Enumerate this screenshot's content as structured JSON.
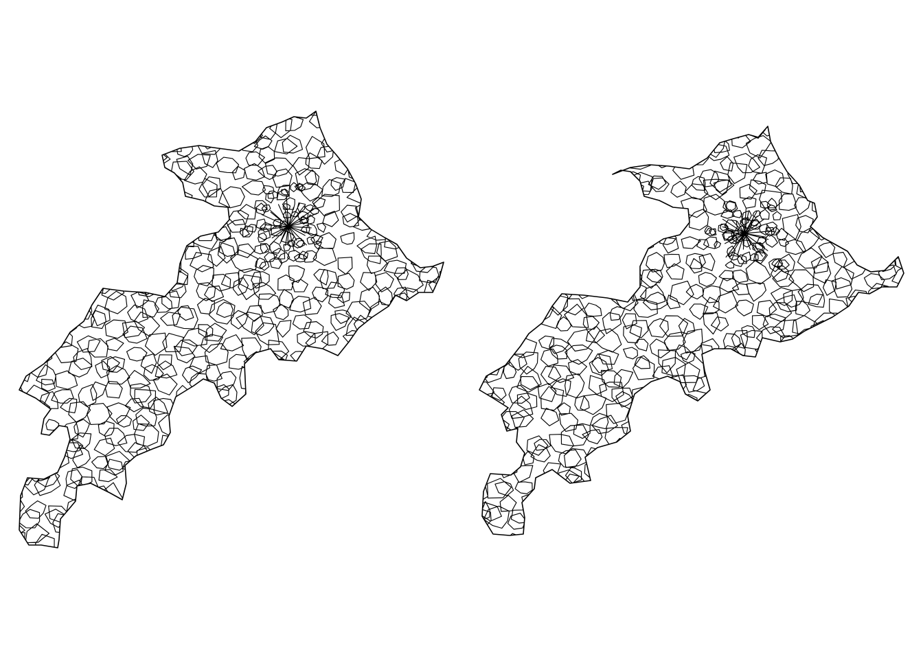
{
  "panels": [
    {
      "name": "left-map",
      "stroke_color": "#000000",
      "fill_color": "#ffffff"
    },
    {
      "name": "right-map",
      "stroke_color": "#000000",
      "fill_color": "#ffffff"
    }
  ],
  "background_color": "#ffffff"
}
